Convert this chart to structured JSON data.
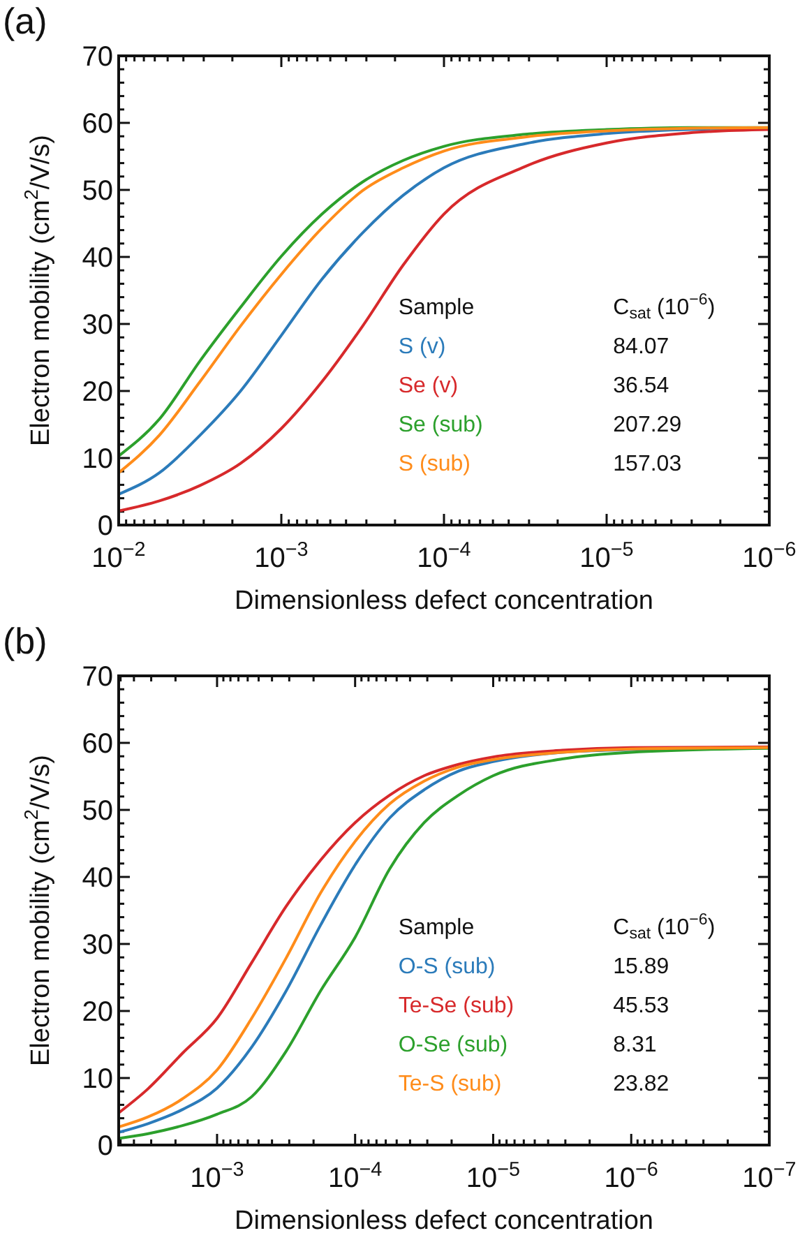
{
  "chart_data": [
    {
      "type": "line",
      "title": "(a)",
      "xlabel": "Dimensionless defect concentration",
      "ylabel": "Electron mobility (cm$^{2}$/V/s)",
      "x": [
        0.01,
        0.00562,
        0.00316,
        0.00178,
        0.001,
        0.000562,
        0.000316,
        0.000178,
        0.0001,
        3.16e-05,
        1e-05,
        3.16e-06,
        1e-06
      ],
      "series": [
        {
          "name": "S (v)",
          "color": "#2b7bba",
          "values": [
            4.6,
            7.8,
            13.4,
            20.0,
            28.3,
            36.7,
            43.6,
            49.2,
            53.3,
            56.9,
            58.4,
            59.0,
            59.2
          ]
        },
        {
          "name": "Se (v)",
          "color": "#d7292b",
          "values": [
            2.1,
            3.6,
            5.9,
            9.2,
            14.4,
            21.4,
            29.7,
            38.8,
            46.4,
            53.5,
            57.0,
            58.5,
            59.0
          ]
        },
        {
          "name": "Se (sub)",
          "color": "#2ca02c",
          "values": [
            10.3,
            15.8,
            24.5,
            32.5,
            40.1,
            46.4,
            51.2,
            54.4,
            56.5,
            58.3,
            59.0,
            59.3,
            59.3
          ]
        },
        {
          "name": "S (sub)",
          "color": "#ff8c1a",
          "values": [
            7.8,
            13.4,
            21.4,
            29.7,
            37.4,
            44.3,
            49.9,
            53.3,
            55.8,
            57.9,
            58.8,
            59.2,
            59.3
          ]
        }
      ],
      "xlim": [
        0.01,
        1e-06
      ],
      "log": "x",
      "xticks": [
        {
          "value": 0.01,
          "label": "10$^{−2}$"
        },
        {
          "value": 0.001,
          "label": "10$^{−3}$"
        },
        {
          "value": 0.0001,
          "label": "10$^{−4}$"
        },
        {
          "value": 1e-05,
          "label": "10$^{−5}$"
        },
        {
          "value": 1e-06,
          "label": "10$^{−6}$"
        },
        {
          "value": 0.009,
          "label": null
        },
        {
          "value": 0.008,
          "label": null
        },
        {
          "value": 0.007,
          "label": null
        },
        {
          "value": 0.006,
          "label": null
        },
        {
          "value": 0.005,
          "label": null
        },
        {
          "value": 0.004,
          "label": null
        },
        {
          "value": 0.003,
          "label": null
        },
        {
          "value": 0.002,
          "label": null
        },
        {
          "value": 0.0009,
          "label": null
        },
        {
          "value": 0.0008,
          "label": null
        },
        {
          "value": 0.0007,
          "label": null
        },
        {
          "value": 0.0006,
          "label": null
        },
        {
          "value": 0.0005,
          "label": null
        },
        {
          "value": 0.0004,
          "label": null
        },
        {
          "value": 0.0003,
          "label": null
        },
        {
          "value": 0.0002,
          "label": null
        },
        {
          "value": 9e-05,
          "label": null
        },
        {
          "value": 8e-05,
          "label": null
        },
        {
          "value": 7e-05,
          "label": null
        },
        {
          "value": 6e-05,
          "label": null
        },
        {
          "value": 5e-05,
          "label": null
        },
        {
          "value": 4e-05,
          "label": null
        },
        {
          "value": 3e-05,
          "label": null
        },
        {
          "value": 2e-05,
          "label": null
        },
        {
          "value": 9e-06,
          "label": null
        },
        {
          "value": 8e-06,
          "label": null
        },
        {
          "value": 7e-06,
          "label": null
        },
        {
          "value": 6e-06,
          "label": null
        },
        {
          "value": 5e-06,
          "label": null
        },
        {
          "value": 4e-06,
          "label": null
        },
        {
          "value": 3e-06,
          "label": null
        },
        {
          "value": 2e-06,
          "label": null
        }
      ],
      "ylim": [
        0,
        70
      ],
      "yticks": [
        0,
        10,
        20,
        30,
        40,
        50,
        60,
        70,
        {
          "value": 2,
          "label": null
        },
        {
          "value": 4,
          "label": null
        },
        {
          "value": 6,
          "label": null
        },
        {
          "value": 8,
          "label": null
        },
        {
          "value": 12,
          "label": null
        },
        {
          "value": 14,
          "label": null
        },
        {
          "value": 16,
          "label": null
        },
        {
          "value": 18,
          "label": null
        },
        {
          "value": 22,
          "label": null
        },
        {
          "value": 24,
          "label": null
        },
        {
          "value": 26,
          "label": null
        },
        {
          "value": 28,
          "label": null
        },
        {
          "value": 32,
          "label": null
        },
        {
          "value": 34,
          "label": null
        },
        {
          "value": 36,
          "label": null
        },
        {
          "value": 38,
          "label": null
        },
        {
          "value": 42,
          "label": null
        },
        {
          "value": 44,
          "label": null
        },
        {
          "value": 46,
          "label": null
        },
        {
          "value": 48,
          "label": null
        },
        {
          "value": 52,
          "label": null
        },
        {
          "value": 54,
          "label": null
        },
        {
          "value": 56,
          "label": null
        },
        {
          "value": 58,
          "label": null
        },
        {
          "value": 62,
          "label": null
        },
        {
          "value": 64,
          "label": null
        },
        {
          "value": 66,
          "label": null
        },
        {
          "value": 68,
          "label": null
        }
      ],
      "legend_title": "Sample",
      "annotations": [
        "C$_{sat}$ (10$^{−6}$)",
        "84.07",
        "36.54",
        "207.29",
        "157.03"
      ],
      "legend": "bottom right",
      "grid": false,
      "marker": "none",
      "line_style": "solid"
    },
    {
      "type": "line",
      "title": "(b)",
      "xlabel": "Dimensionless defect concentration",
      "ylabel": "Electron mobility (cm$^{2}$/V/s)",
      "x": [
        0.00516,
        0.00316,
        0.00178,
        0.001,
        0.000562,
        0.000316,
        0.000178,
        0.0001,
        5.62e-05,
        3.16e-05,
        1.78e-05,
        1e-05,
        3.16e-06,
        1e-06,
        1e-07
      ],
      "series": [
        {
          "name": "O-S (sub)",
          "color": "#2b7bba",
          "values": [
            1.9,
            3.2,
            5.3,
            8.5,
            14.6,
            23.0,
            32.8,
            41.8,
            48.8,
            53.0,
            55.8,
            57.2,
            58.6,
            59.0,
            59.3
          ]
        },
        {
          "name": "Te-Se (sub)",
          "color": "#d7292b",
          "values": [
            4.8,
            8.4,
            13.7,
            18.9,
            27.2,
            35.6,
            42.5,
            48.1,
            52.2,
            55.1,
            56.8,
            57.9,
            58.9,
            59.3,
            59.4
          ]
        },
        {
          "name": "O-Se (sub)",
          "color": "#2ca02c",
          "values": [
            1.0,
            1.7,
            2.9,
            4.6,
            7.2,
            14.0,
            23.0,
            31.0,
            41.2,
            48.1,
            52.2,
            55.1,
            57.6,
            58.6,
            59.2
          ]
        },
        {
          "name": "Te-S (sub)",
          "color": "#ff8c1a",
          "values": [
            2.7,
            4.2,
            6.9,
            11.2,
            18.9,
            27.9,
            37.6,
            45.3,
            50.9,
            54.3,
            56.4,
            57.5,
            58.6,
            59.1,
            59.3
          ]
        }
      ],
      "xlim": [
        0.00516,
        1e-07
      ],
      "log": "x",
      "xticks": [
        {
          "value": 0.001,
          "label": "10$^{−3}$"
        },
        {
          "value": 0.0001,
          "label": "10$^{−4}$"
        },
        {
          "value": 1e-05,
          "label": "10$^{−5}$"
        },
        {
          "value": 1e-06,
          "label": "10$^{−6}$"
        },
        {
          "value": 1e-07,
          "label": "10$^{−7}$"
        },
        {
          "value": 0.005,
          "label": null
        },
        {
          "value": 0.004,
          "label": null
        },
        {
          "value": 0.003,
          "label": null
        },
        {
          "value": 0.002,
          "label": null
        },
        {
          "value": 0.0009,
          "label": null
        },
        {
          "value": 0.0008,
          "label": null
        },
        {
          "value": 0.0007,
          "label": null
        },
        {
          "value": 0.0006,
          "label": null
        },
        {
          "value": 0.0005,
          "label": null
        },
        {
          "value": 0.0004,
          "label": null
        },
        {
          "value": 0.0003,
          "label": null
        },
        {
          "value": 0.0002,
          "label": null
        },
        {
          "value": 9e-05,
          "label": null
        },
        {
          "value": 8e-05,
          "label": null
        },
        {
          "value": 7e-05,
          "label": null
        },
        {
          "value": 6e-05,
          "label": null
        },
        {
          "value": 5e-05,
          "label": null
        },
        {
          "value": 4e-05,
          "label": null
        },
        {
          "value": 3e-05,
          "label": null
        },
        {
          "value": 2e-05,
          "label": null
        },
        {
          "value": 9e-06,
          "label": null
        },
        {
          "value": 8e-06,
          "label": null
        },
        {
          "value": 7e-06,
          "label": null
        },
        {
          "value": 6e-06,
          "label": null
        },
        {
          "value": 5e-06,
          "label": null
        },
        {
          "value": 4e-06,
          "label": null
        },
        {
          "value": 3e-06,
          "label": null
        },
        {
          "value": 2e-06,
          "label": null
        },
        {
          "value": 9e-07,
          "label": null
        },
        {
          "value": 8e-07,
          "label": null
        },
        {
          "value": 7e-07,
          "label": null
        },
        {
          "value": 6e-07,
          "label": null
        },
        {
          "value": 5e-07,
          "label": null
        },
        {
          "value": 4e-07,
          "label": null
        },
        {
          "value": 3e-07,
          "label": null
        },
        {
          "value": 2e-07,
          "label": null
        }
      ],
      "ylim": [
        0,
        70
      ],
      "yticks": [
        0,
        10,
        20,
        30,
        40,
        50,
        60,
        70,
        {
          "value": 2,
          "label": null
        },
        {
          "value": 4,
          "label": null
        },
        {
          "value": 6,
          "label": null
        },
        {
          "value": 8,
          "label": null
        },
        {
          "value": 12,
          "label": null
        },
        {
          "value": 14,
          "label": null
        },
        {
          "value": 16,
          "label": null
        },
        {
          "value": 18,
          "label": null
        },
        {
          "value": 22,
          "label": null
        },
        {
          "value": 24,
          "label": null
        },
        {
          "value": 26,
          "label": null
        },
        {
          "value": 28,
          "label": null
        },
        {
          "value": 32,
          "label": null
        },
        {
          "value": 34,
          "label": null
        },
        {
          "value": 36,
          "label": null
        },
        {
          "value": 38,
          "label": null
        },
        {
          "value": 42,
          "label": null
        },
        {
          "value": 44,
          "label": null
        },
        {
          "value": 46,
          "label": null
        },
        {
          "value": 48,
          "label": null
        },
        {
          "value": 52,
          "label": null
        },
        {
          "value": 54,
          "label": null
        },
        {
          "value": 56,
          "label": null
        },
        {
          "value": 58,
          "label": null
        },
        {
          "value": 62,
          "label": null
        },
        {
          "value": 64,
          "label": null
        },
        {
          "value": 66,
          "label": null
        },
        {
          "value": 68,
          "label": null
        }
      ],
      "legend_title": "Sample",
      "annotations": [
        "C$_{sat}$ (10$^{−6}$)",
        "15.89",
        "45.53",
        "8.31",
        "23.82"
      ],
      "legend": "bottom right",
      "grid": false,
      "marker": "none",
      "line_style": "solid"
    }
  ]
}
